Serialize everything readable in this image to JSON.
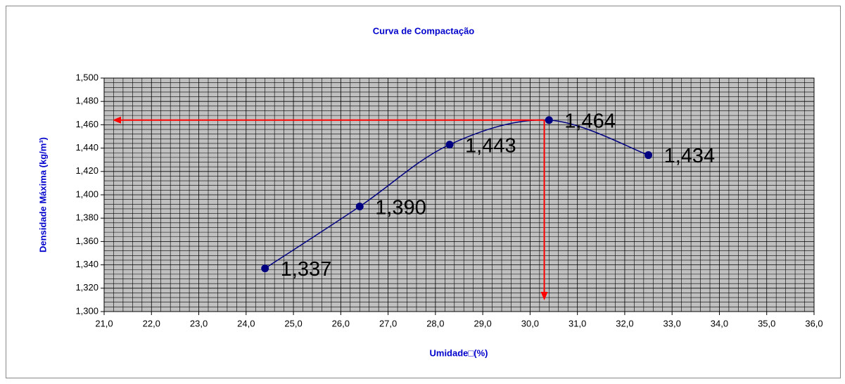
{
  "chart_data": {
    "type": "line",
    "title": "Curva de Compactação",
    "xlabel": "Umidade□(%)",
    "ylabel": "Densidade Máxima (kg/m³)",
    "x": [
      24.4,
      26.4,
      28.3,
      30.4,
      32.5
    ],
    "values": [
      1.337,
      1.39,
      1.443,
      1.464,
      1.434
    ],
    "value_labels": [
      "1,337",
      "1,390",
      "1,443",
      "1,464",
      "1,434"
    ],
    "color": "#000080",
    "smooth": true,
    "xlim": [
      21,
      36
    ],
    "xticks": [
      {
        "value": 21,
        "label": "21,0"
      },
      {
        "value": 22,
        "label": "22,0"
      },
      {
        "value": 23,
        "label": "23,0"
      },
      {
        "value": 24,
        "label": "24,0"
      },
      {
        "value": 25,
        "label": "25,0"
      },
      {
        "value": 26,
        "label": "26,0"
      },
      {
        "value": 27,
        "label": "27,0"
      },
      {
        "value": 28,
        "label": "28,0"
      },
      {
        "value": 29,
        "label": "29,0"
      },
      {
        "value": 30,
        "label": "30,0"
      },
      {
        "value": 31,
        "label": "31,0"
      },
      {
        "value": 32,
        "label": "32,0"
      },
      {
        "value": 33,
        "label": "33,0"
      },
      {
        "value": 34,
        "label": "34,0"
      },
      {
        "value": 35,
        "label": "35,0"
      },
      {
        "value": 36,
        "label": "36,0"
      }
    ],
    "ylim": [
      1.3,
      1.5
    ],
    "yticks": [
      {
        "value": 1.3,
        "label": "1,300"
      },
      {
        "value": 1.32,
        "label": "1,320"
      },
      {
        "value": 1.34,
        "label": "1,340"
      },
      {
        "value": 1.36,
        "label": "1,360"
      },
      {
        "value": 1.38,
        "label": "1,380"
      },
      {
        "value": 1.4,
        "label": "1,400"
      },
      {
        "value": 1.42,
        "label": "1,420"
      },
      {
        "value": 1.44,
        "label": "1,440"
      },
      {
        "value": 1.46,
        "label": "1,460"
      },
      {
        "value": 1.48,
        "label": "1,480"
      },
      {
        "value": 1.5,
        "label": "1,500"
      }
    ],
    "grid": true,
    "minor_grid": true,
    "optimum": {
      "x": 30.3,
      "y": 1.464,
      "color": "#ff0000"
    }
  }
}
